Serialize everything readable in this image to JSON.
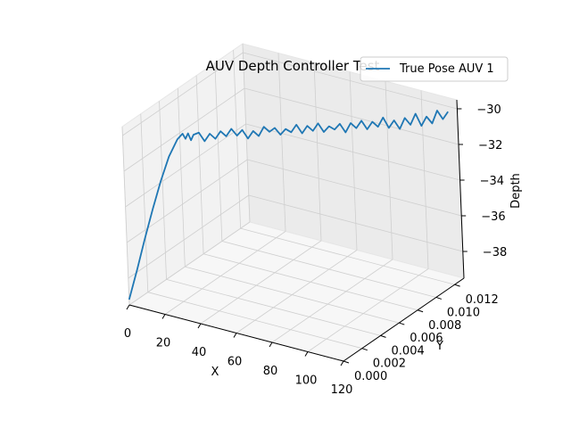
{
  "chart_data": {
    "type": "line",
    "projection": "3d",
    "title": "AUV Depth Controller Test",
    "xlabel": "X",
    "ylabel": "Y",
    "zlabel": "Depth",
    "xlim": [
      0,
      120
    ],
    "ylim": [
      0.0,
      0.013
    ],
    "zlim": [
      -39.5,
      -29.5
    ],
    "x_ticks": [
      "0",
      "20",
      "40",
      "60",
      "80",
      "100",
      "120"
    ],
    "y_ticks": [
      "0.000",
      "0.002",
      "0.004",
      "0.006",
      "0.008",
      "0.010",
      "0.012"
    ],
    "z_ticks": [
      "−38",
      "−36",
      "−34",
      "−32",
      "−30"
    ],
    "grid": true,
    "legend": {
      "position": "top-right",
      "entries": [
        "True Pose AUV 1"
      ]
    },
    "series": [
      {
        "name": "True Pose AUV 1",
        "color": "#1f77b4",
        "x": [
          0,
          3,
          6,
          9,
          12,
          15,
          18,
          20,
          21,
          22,
          23,
          24,
          26,
          28,
          30,
          32,
          34,
          36,
          38,
          40,
          42,
          44,
          46,
          48,
          50,
          52,
          54,
          56,
          58,
          60,
          62,
          64,
          66,
          68,
          70,
          72,
          74,
          76,
          78,
          80,
          82,
          84,
          86,
          88,
          90,
          92,
          94,
          96,
          98,
          100,
          102,
          104,
          106,
          108,
          110,
          112,
          114,
          116,
          118
        ],
        "y": [
          0.0,
          0.0004,
          0.0008,
          0.0012,
          0.0016,
          0.002,
          0.0024,
          0.0026,
          0.0027,
          0.0028,
          0.0029,
          0.003,
          0.0032,
          0.0034,
          0.0036,
          0.0038,
          0.004,
          0.0042,
          0.0044,
          0.0046,
          0.0048,
          0.005,
          0.0052,
          0.0054,
          0.0056,
          0.0058,
          0.006,
          0.0062,
          0.0064,
          0.0066,
          0.0068,
          0.007,
          0.0072,
          0.0074,
          0.0076,
          0.0078,
          0.008,
          0.0082,
          0.0084,
          0.0086,
          0.0088,
          0.009,
          0.0092,
          0.0094,
          0.0096,
          0.0098,
          0.01,
          0.0102,
          0.0104,
          0.0106,
          0.0108,
          0.011,
          0.0112,
          0.0114,
          0.0116,
          0.0118,
          0.012,
          0.0122,
          0.0124
        ],
        "z": [
          -39.2,
          -37.6,
          -35.9,
          -34.3,
          -32.8,
          -31.5,
          -30.6,
          -30.3,
          -30.6,
          -30.3,
          -30.7,
          -30.4,
          -30.3,
          -30.8,
          -30.4,
          -30.7,
          -30.3,
          -30.6,
          -30.2,
          -30.6,
          -30.3,
          -30.8,
          -30.4,
          -30.7,
          -30.2,
          -30.5,
          -30.3,
          -30.7,
          -30.4,
          -30.6,
          -30.2,
          -30.7,
          -30.3,
          -30.6,
          -30.2,
          -30.7,
          -30.4,
          -30.6,
          -30.3,
          -30.8,
          -30.3,
          -30.6,
          -30.2,
          -30.7,
          -30.3,
          -30.6,
          -30.1,
          -30.7,
          -30.3,
          -30.8,
          -30.2,
          -30.6,
          -30.0,
          -30.7,
          -30.2,
          -30.6,
          -29.9,
          -30.4,
          -30.0
        ]
      }
    ]
  }
}
